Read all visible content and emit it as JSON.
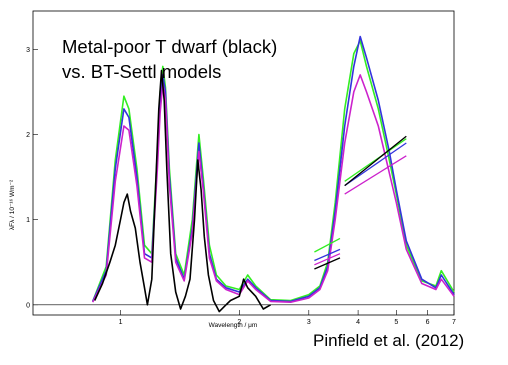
{
  "annotation": {
    "line1": "Metal-poor T dwarf (black)",
    "line2": "vs. BT-Settl models"
  },
  "credit": "Pinfield et al. (2012)",
  "chart_data": {
    "type": "line",
    "title": "",
    "xlabel": "Wavelength / μm",
    "ylabel": "λFλ / 10⁻¹⁶ Wm⁻²",
    "x_scale": "log",
    "xlim": [
      0.6,
      7.0
    ],
    "ylim": [
      -0.12,
      3.45
    ],
    "x_ticks": [
      {
        "value": 1,
        "label": "1"
      },
      {
        "value": 2,
        "label": "2"
      },
      {
        "value": 3,
        "label": "3"
      },
      {
        "value": 4,
        "label": "4"
      },
      {
        "value": 5,
        "label": "5"
      },
      {
        "value": 6,
        "label": "6"
      },
      {
        "value": 7,
        "label": "7"
      }
    ],
    "y_ticks": [
      {
        "value": 0,
        "label": "0"
      },
      {
        "value": 1,
        "label": "1"
      },
      {
        "value": 2,
        "label": "2"
      },
      {
        "value": 3,
        "label": "3"
      }
    ],
    "zero_line": true,
    "series": [
      {
        "color": "#33ee22",
        "points": [
          [
            0.85,
            0.04
          ],
          [
            0.92,
            0.45
          ],
          [
            0.97,
            1.7
          ],
          [
            1.02,
            2.45
          ],
          [
            1.05,
            2.3
          ],
          [
            1.1,
            1.6
          ],
          [
            1.15,
            0.7
          ],
          [
            1.2,
            0.6
          ],
          [
            1.24,
            1.8
          ],
          [
            1.26,
            2.5
          ],
          [
            1.28,
            2.8
          ],
          [
            1.3,
            2.55
          ],
          [
            1.33,
            1.6
          ],
          [
            1.38,
            0.6
          ],
          [
            1.45,
            0.35
          ],
          [
            1.52,
            1.0
          ],
          [
            1.58,
            2.0
          ],
          [
            1.62,
            1.5
          ],
          [
            1.68,
            0.7
          ],
          [
            1.75,
            0.35
          ],
          [
            1.85,
            0.22
          ],
          [
            2.0,
            0.18
          ],
          [
            2.1,
            0.35
          ],
          [
            2.2,
            0.22
          ],
          [
            2.4,
            0.06
          ],
          [
            2.7,
            0.05
          ],
          [
            3.0,
            0.12
          ],
          [
            3.2,
            0.22
          ],
          [
            3.35,
            0.5
          ],
          [
            3.5,
            1.2
          ],
          [
            3.7,
            2.3
          ],
          [
            3.9,
            2.95
          ],
          [
            4.05,
            3.1
          ],
          [
            4.2,
            2.8
          ],
          [
            4.5,
            2.3
          ],
          [
            4.8,
            1.7
          ],
          [
            5.0,
            1.3
          ],
          [
            5.3,
            0.7
          ],
          [
            5.8,
            0.28
          ],
          [
            6.3,
            0.22
          ],
          [
            6.5,
            0.4
          ],
          [
            7.0,
            0.15
          ]
        ]
      },
      {
        "color": "#3333dd",
        "points": [
          [
            0.85,
            0.04
          ],
          [
            0.92,
            0.4
          ],
          [
            0.97,
            1.6
          ],
          [
            1.02,
            2.3
          ],
          [
            1.05,
            2.2
          ],
          [
            1.1,
            1.5
          ],
          [
            1.15,
            0.6
          ],
          [
            1.2,
            0.55
          ],
          [
            1.24,
            1.7
          ],
          [
            1.26,
            2.4
          ],
          [
            1.28,
            2.7
          ],
          [
            1.3,
            2.5
          ],
          [
            1.33,
            1.5
          ],
          [
            1.38,
            0.55
          ],
          [
            1.45,
            0.3
          ],
          [
            1.52,
            0.9
          ],
          [
            1.58,
            1.9
          ],
          [
            1.62,
            1.4
          ],
          [
            1.68,
            0.6
          ],
          [
            1.75,
            0.3
          ],
          [
            1.85,
            0.2
          ],
          [
            2.0,
            0.15
          ],
          [
            2.1,
            0.3
          ],
          [
            2.2,
            0.2
          ],
          [
            2.4,
            0.05
          ],
          [
            2.7,
            0.04
          ],
          [
            3.0,
            0.1
          ],
          [
            3.2,
            0.2
          ],
          [
            3.35,
            0.45
          ],
          [
            3.5,
            1.1
          ],
          [
            3.7,
            2.1
          ],
          [
            3.9,
            2.8
          ],
          [
            4.05,
            3.15
          ],
          [
            4.2,
            2.9
          ],
          [
            4.5,
            2.4
          ],
          [
            4.8,
            1.8
          ],
          [
            5.0,
            1.35
          ],
          [
            5.3,
            0.75
          ],
          [
            5.8,
            0.3
          ],
          [
            6.3,
            0.2
          ],
          [
            6.5,
            0.35
          ],
          [
            7.0,
            0.12
          ]
        ]
      },
      {
        "color": "#cc22cc",
        "points": [
          [
            0.85,
            0.03
          ],
          [
            0.92,
            0.35
          ],
          [
            0.97,
            1.45
          ],
          [
            1.02,
            2.1
          ],
          [
            1.05,
            2.05
          ],
          [
            1.1,
            1.4
          ],
          [
            1.15,
            0.55
          ],
          [
            1.2,
            0.5
          ],
          [
            1.24,
            1.6
          ],
          [
            1.26,
            2.25
          ],
          [
            1.28,
            2.6
          ],
          [
            1.3,
            2.4
          ],
          [
            1.33,
            1.4
          ],
          [
            1.38,
            0.5
          ],
          [
            1.45,
            0.28
          ],
          [
            1.52,
            0.85
          ],
          [
            1.58,
            1.8
          ],
          [
            1.62,
            1.35
          ],
          [
            1.68,
            0.55
          ],
          [
            1.75,
            0.28
          ],
          [
            1.85,
            0.18
          ],
          [
            2.0,
            0.12
          ],
          [
            2.1,
            0.28
          ],
          [
            2.2,
            0.18
          ],
          [
            2.4,
            0.04
          ],
          [
            2.7,
            0.03
          ],
          [
            3.0,
            0.08
          ],
          [
            3.2,
            0.18
          ],
          [
            3.35,
            0.4
          ],
          [
            3.5,
            1.0
          ],
          [
            3.7,
            1.9
          ],
          [
            3.9,
            2.5
          ],
          [
            4.05,
            2.7
          ],
          [
            4.2,
            2.5
          ],
          [
            4.5,
            2.1
          ],
          [
            4.8,
            1.55
          ],
          [
            5.0,
            1.2
          ],
          [
            5.3,
            0.65
          ],
          [
            5.8,
            0.25
          ],
          [
            6.3,
            0.18
          ],
          [
            6.5,
            0.3
          ],
          [
            7.0,
            0.1
          ]
        ]
      },
      {
        "color": "#000000",
        "points": [
          [
            0.86,
            0.05
          ],
          [
            0.9,
            0.25
          ],
          [
            0.94,
            0.5
          ],
          [
            0.97,
            0.7
          ],
          [
            1.0,
            1.0
          ],
          [
            1.02,
            1.2
          ],
          [
            1.04,
            1.3
          ],
          [
            1.06,
            1.1
          ],
          [
            1.09,
            0.9
          ],
          [
            1.12,
            0.5
          ],
          [
            1.15,
            0.2
          ],
          [
            1.17,
            0.0
          ],
          [
            1.2,
            0.3
          ],
          [
            1.23,
            1.5
          ],
          [
            1.25,
            2.3
          ],
          [
            1.27,
            2.75
          ],
          [
            1.29,
            2.4
          ],
          [
            1.31,
            1.6
          ],
          [
            1.34,
            0.6
          ],
          [
            1.38,
            0.15
          ],
          [
            1.42,
            -0.05
          ],
          [
            1.46,
            0.1
          ],
          [
            1.5,
            0.3
          ],
          [
            1.54,
            1.0
          ],
          [
            1.57,
            1.7
          ],
          [
            1.6,
            1.35
          ],
          [
            1.63,
            0.8
          ],
          [
            1.67,
            0.35
          ],
          [
            1.72,
            0.05
          ],
          [
            1.78,
            -0.08
          ],
          [
            1.85,
            0.0
          ],
          [
            1.9,
            0.05
          ],
          [
            2.0,
            0.1
          ],
          [
            2.05,
            0.3
          ],
          [
            2.1,
            0.2
          ],
          [
            2.2,
            0.1
          ],
          [
            2.3,
            -0.05
          ],
          [
            2.4,
            0.0
          ]
        ]
      },
      {
        "color": "#33ee22",
        "points": [
          [
            3.1,
            0.62
          ],
          [
            3.6,
            0.78
          ]
        ]
      },
      {
        "color": "#3333dd",
        "points": [
          [
            3.1,
            0.52
          ],
          [
            3.6,
            0.65
          ]
        ]
      },
      {
        "color": "#cc22cc",
        "points": [
          [
            3.1,
            0.47
          ],
          [
            3.6,
            0.6
          ]
        ]
      },
      {
        "color": "#000000",
        "points": [
          [
            3.1,
            0.42
          ],
          [
            3.6,
            0.55
          ]
        ]
      },
      {
        "color": "#33ee22",
        "points": [
          [
            3.7,
            1.45
          ],
          [
            5.3,
            1.95
          ]
        ]
      },
      {
        "color": "#3333dd",
        "points": [
          [
            3.7,
            1.4
          ],
          [
            5.3,
            1.9
          ]
        ]
      },
      {
        "color": "#cc22cc",
        "points": [
          [
            3.7,
            1.3
          ],
          [
            5.3,
            1.75
          ]
        ]
      },
      {
        "color": "#000000",
        "points": [
          [
            3.7,
            1.4
          ],
          [
            5.3,
            1.98
          ]
        ]
      }
    ]
  }
}
